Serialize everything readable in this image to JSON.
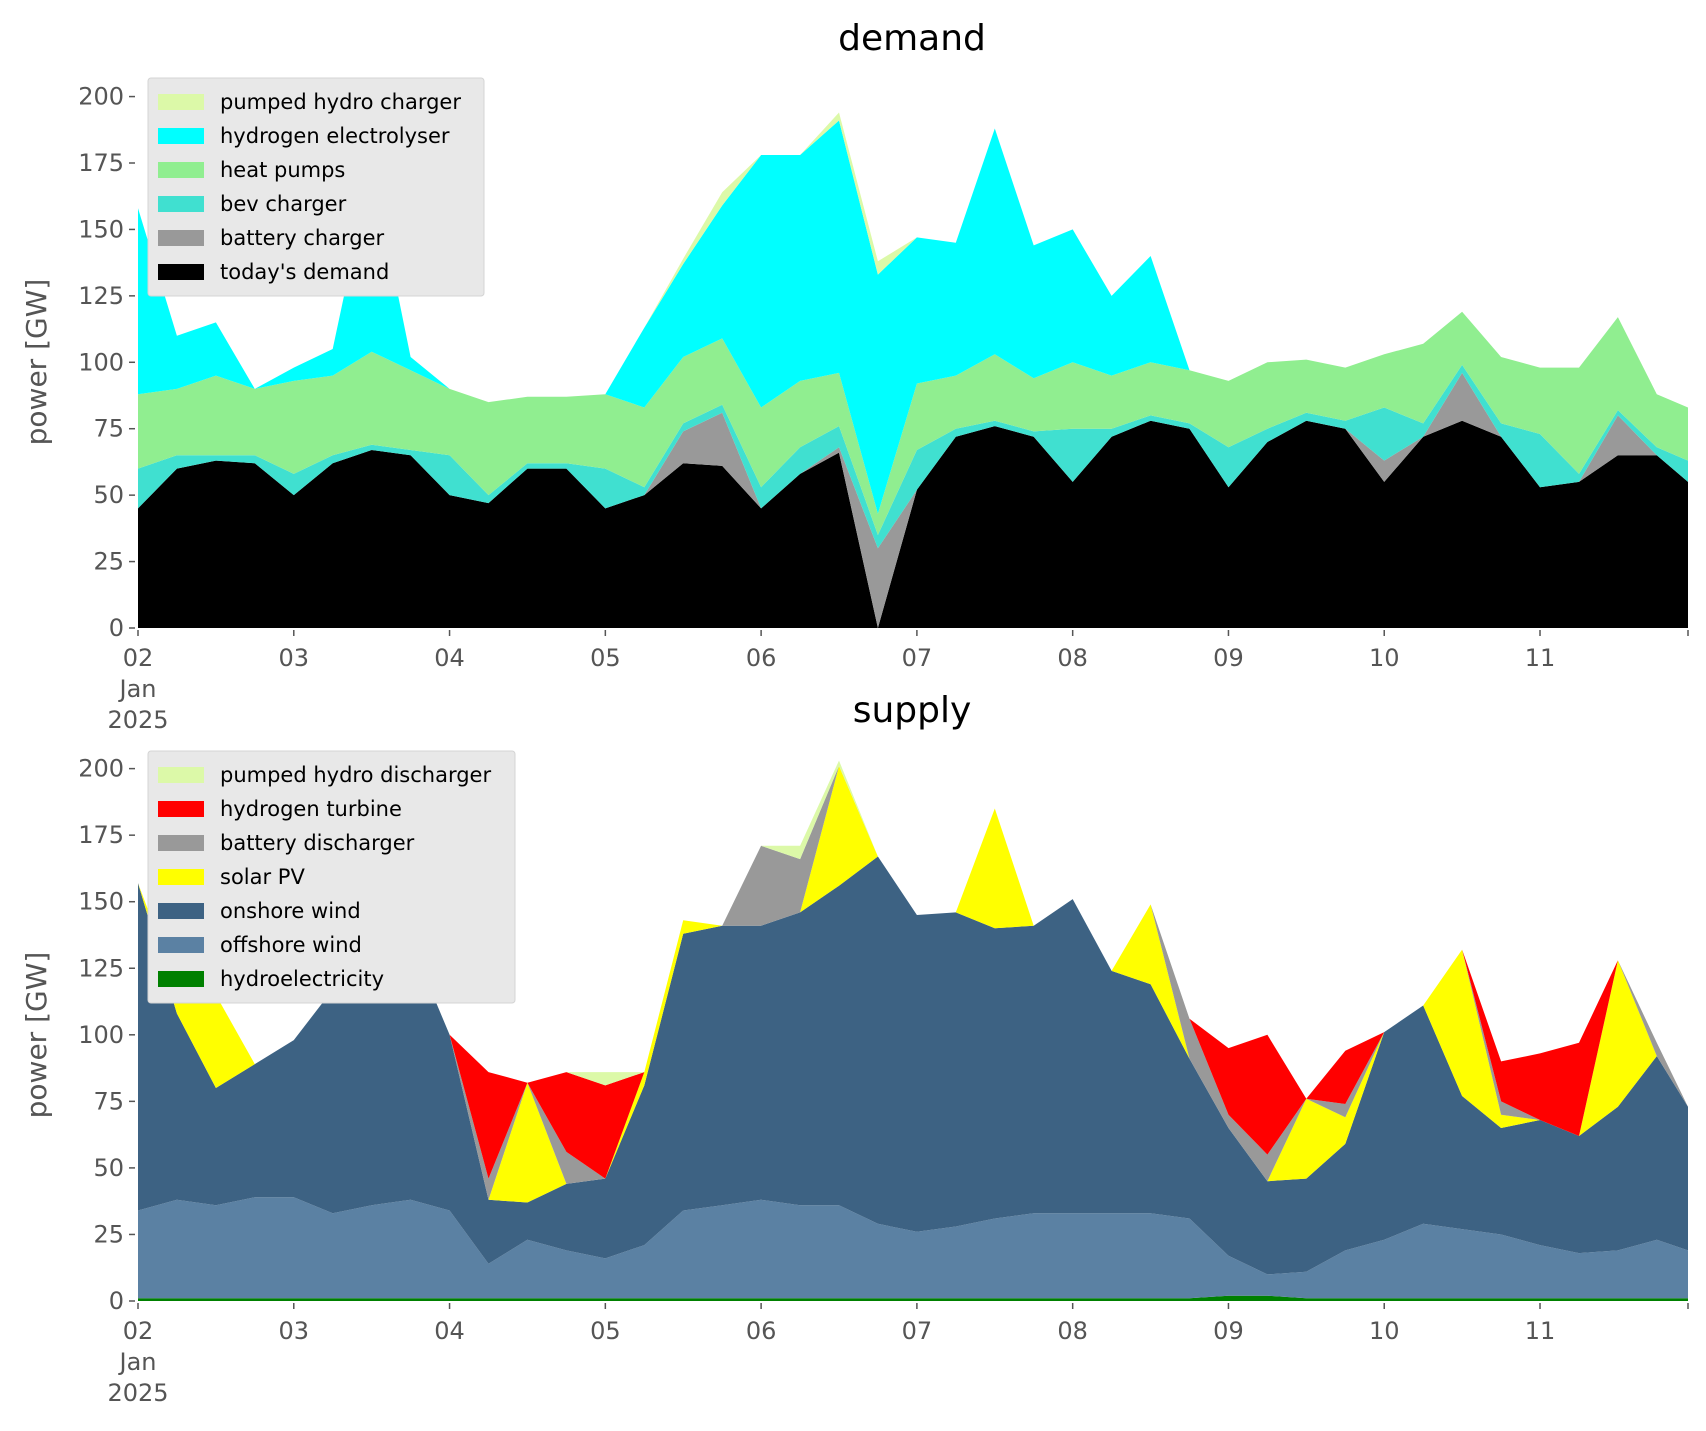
{
  "chart_data": [
    {
      "type": "area",
      "stacked": true,
      "title": "demand",
      "ylabel": "power [GW]",
      "ylim": [
        0,
        210
      ],
      "yticks": [
        0,
        25,
        50,
        75,
        100,
        125,
        150,
        175,
        200
      ],
      "xlim": [
        2,
        11.95
      ],
      "xticks": [
        {
          "value": 2,
          "lines": [
            "02",
            "Jan",
            "2025"
          ]
        },
        {
          "value": 3,
          "lines": [
            "03"
          ]
        },
        {
          "value": 4,
          "lines": [
            "04"
          ]
        },
        {
          "value": 5,
          "lines": [
            "05"
          ]
        },
        {
          "value": 6,
          "lines": [
            "06"
          ]
        },
        {
          "value": 7,
          "lines": [
            "07"
          ]
        },
        {
          "value": 8,
          "lines": [
            "08"
          ]
        },
        {
          "value": 9,
          "lines": [
            "09"
          ]
        },
        {
          "value": 10,
          "lines": [
            "10"
          ]
        },
        {
          "value": 11,
          "lines": [
            "11"
          ]
        }
      ],
      "grid": false,
      "legend_position": "top-left",
      "x": [
        2.0,
        2.25,
        2.5,
        2.75,
        3.0,
        3.25,
        3.5,
        3.75,
        4.0,
        4.25,
        4.5,
        4.75,
        5.0,
        5.25,
        5.5,
        5.75,
        6.0,
        6.25,
        6.5,
        6.75,
        7.0,
        7.25,
        7.5,
        7.75,
        8.0,
        8.25,
        8.5,
        8.75,
        9.0,
        9.25,
        9.5,
        9.75,
        10.0,
        10.25,
        10.5,
        10.75,
        11.0,
        11.25,
        11.5,
        11.75,
        11.95
      ],
      "series": [
        {
          "name": "today's demand",
          "color": "#000000",
          "values": [
            45,
            60,
            63,
            62,
            50,
            62,
            67,
            65,
            50,
            47,
            60,
            60,
            45,
            50,
            62,
            61,
            45,
            58,
            66,
            0,
            52,
            72,
            76,
            72,
            55,
            72,
            78,
            75,
            53,
            70,
            78,
            75,
            55,
            72,
            78,
            72,
            53,
            55,
            65,
            65,
            55
          ]
        },
        {
          "name": "battery charger",
          "color": "#999999",
          "values": [
            0,
            0,
            0,
            0,
            0,
            0,
            0,
            0,
            0,
            0,
            0,
            0,
            0,
            0,
            12,
            20,
            0,
            0,
            2,
            30,
            0,
            0,
            0,
            0,
            0,
            0,
            0,
            0,
            0,
            0,
            0,
            0,
            8,
            0,
            18,
            0,
            0,
            0,
            15,
            0,
            0
          ]
        },
        {
          "name": "bev charger",
          "color": "#40e0d0",
          "values": [
            15,
            5,
            2,
            3,
            8,
            3,
            2,
            2,
            15,
            3,
            2,
            2,
            15,
            3,
            3,
            3,
            8,
            10,
            8,
            5,
            15,
            3,
            2,
            2,
            20,
            3,
            2,
            2,
            15,
            5,
            3,
            3,
            20,
            5,
            3,
            5,
            20,
            3,
            2,
            3,
            8
          ]
        },
        {
          "name": "heat pumps",
          "color": "#90ee90",
          "values": [
            28,
            25,
            30,
            25,
            35,
            30,
            35,
            30,
            25,
            35,
            25,
            25,
            28,
            30,
            25,
            25,
            30,
            25,
            20,
            8,
            25,
            20,
            25,
            20,
            25,
            20,
            20,
            20,
            25,
            25,
            20,
            20,
            20,
            30,
            20,
            25,
            25,
            40,
            35,
            20,
            20
          ]
        },
        {
          "name": "hydrogen electrolyser",
          "color": "#00ffff",
          "values": [
            70,
            20,
            20,
            0,
            5,
            10,
            70,
            5,
            0,
            0,
            0,
            0,
            0,
            30,
            35,
            50,
            95,
            85,
            95,
            90,
            55,
            50,
            85,
            50,
            50,
            30,
            40,
            0,
            0,
            0,
            0,
            0,
            0,
            0,
            0,
            0,
            0,
            0,
            0,
            0,
            0
          ]
        },
        {
          "name": "pumped hydro charger",
          "color": "#dcf9a8",
          "values": [
            0,
            0,
            0,
            0,
            0,
            0,
            0,
            0,
            0,
            0,
            0,
            0,
            0,
            0,
            2,
            5,
            0,
            0,
            3,
            5,
            0,
            0,
            0,
            0,
            0,
            0,
            0,
            0,
            0,
            0,
            0,
            0,
            0,
            0,
            0,
            0,
            0,
            0,
            0,
            0,
            0
          ]
        }
      ]
    },
    {
      "type": "area",
      "stacked": true,
      "title": "supply",
      "ylabel": "power [GW]",
      "ylim": [
        0,
        210
      ],
      "yticks": [
        0,
        25,
        50,
        75,
        100,
        125,
        150,
        175,
        200
      ],
      "xlim": [
        2,
        11.95
      ],
      "xticks": [
        {
          "value": 2,
          "lines": [
            "02",
            "Jan",
            "2025"
          ]
        },
        {
          "value": 3,
          "lines": [
            "03"
          ]
        },
        {
          "value": 4,
          "lines": [
            "04"
          ]
        },
        {
          "value": 5,
          "lines": [
            "05"
          ]
        },
        {
          "value": 6,
          "lines": [
            "06"
          ]
        },
        {
          "value": 7,
          "lines": [
            "07"
          ]
        },
        {
          "value": 8,
          "lines": [
            "08"
          ]
        },
        {
          "value": 9,
          "lines": [
            "09"
          ]
        },
        {
          "value": 10,
          "lines": [
            "10"
          ]
        },
        {
          "value": 11,
          "lines": [
            "11"
          ]
        }
      ],
      "grid": false,
      "legend_position": "top-left",
      "x": [
        2.0,
        2.25,
        2.5,
        2.75,
        3.0,
        3.25,
        3.5,
        3.75,
        4.0,
        4.25,
        4.5,
        4.75,
        5.0,
        5.25,
        5.5,
        5.75,
        6.0,
        6.25,
        6.5,
        6.75,
        7.0,
        7.25,
        7.5,
        7.75,
        8.0,
        8.25,
        8.5,
        8.75,
        9.0,
        9.25,
        9.5,
        9.75,
        10.0,
        10.25,
        10.5,
        10.75,
        11.0,
        11.25,
        11.5,
        11.75,
        11.95
      ],
      "series": [
        {
          "name": "hydroelectricity",
          "color": "#008000",
          "values": [
            1,
            1,
            1,
            1,
            1,
            1,
            1,
            1,
            1,
            1,
            1,
            1,
            1,
            1,
            1,
            1,
            1,
            1,
            1,
            1,
            1,
            1,
            1,
            1,
            1,
            1,
            1,
            1,
            2,
            2,
            1,
            1,
            1,
            1,
            1,
            1,
            1,
            1,
            1,
            1,
            1
          ]
        },
        {
          "name": "offshore wind",
          "color": "#5b81a3",
          "values": [
            33,
            37,
            35,
            38,
            38,
            32,
            35,
            37,
            33,
            13,
            22,
            18,
            15,
            20,
            33,
            35,
            37,
            35,
            35,
            28,
            25,
            27,
            30,
            32,
            32,
            32,
            32,
            30,
            15,
            8,
            10,
            18,
            22,
            28,
            26,
            24,
            20,
            17,
            18,
            22,
            18
          ]
        },
        {
          "name": "onshore wind",
          "color": "#3d6283",
          "values": [
            123,
            70,
            44,
            50,
            59,
            84,
            107,
            97,
            66,
            24,
            14,
            25,
            30,
            60,
            104,
            105,
            103,
            110,
            120,
            138,
            119,
            118,
            109,
            108,
            118,
            91,
            86,
            60,
            48,
            35,
            35,
            40,
            78,
            82,
            50,
            40,
            47,
            44,
            54,
            69,
            54
          ]
        },
        {
          "name": "solar PV",
          "color": "#ffff00",
          "values": [
            0,
            10,
            35,
            0,
            0,
            0,
            50,
            0,
            0,
            0,
            45,
            0,
            0,
            5,
            5,
            0,
            0,
            0,
            45,
            0,
            0,
            0,
            45,
            0,
            0,
            0,
            30,
            0,
            0,
            0,
            30,
            10,
            0,
            0,
            55,
            5,
            0,
            0,
            55,
            0,
            0
          ]
        },
        {
          "name": "battery discharger",
          "color": "#999999",
          "values": [
            0,
            0,
            0,
            0,
            0,
            0,
            0,
            0,
            0,
            8,
            0,
            12,
            0,
            0,
            0,
            0,
            30,
            20,
            0,
            0,
            0,
            0,
            0,
            0,
            0,
            0,
            0,
            15,
            5,
            10,
            0,
            5,
            0,
            0,
            0,
            5,
            0,
            0,
            0,
            5,
            0
          ]
        },
        {
          "name": "hydrogen turbine",
          "color": "#ff0000",
          "values": [
            0,
            0,
            0,
            0,
            0,
            0,
            0,
            0,
            0,
            40,
            0,
            30,
            35,
            0,
            0,
            0,
            0,
            0,
            0,
            0,
            0,
            0,
            0,
            0,
            0,
            0,
            0,
            0,
            25,
            45,
            0,
            20,
            0,
            0,
            0,
            15,
            25,
            35,
            0,
            0,
            0
          ]
        },
        {
          "name": "pumped hydro discharger",
          "color": "#dcf9a8",
          "values": [
            0,
            0,
            0,
            0,
            0,
            0,
            0,
            0,
            0,
            0,
            0,
            0,
            5,
            0,
            0,
            0,
            0,
            5,
            2,
            0,
            0,
            0,
            0,
            0,
            0,
            0,
            0,
            0,
            0,
            0,
            0,
            0,
            0,
            0,
            0,
            0,
            0,
            0,
            0,
            0,
            0
          ]
        }
      ]
    }
  ]
}
